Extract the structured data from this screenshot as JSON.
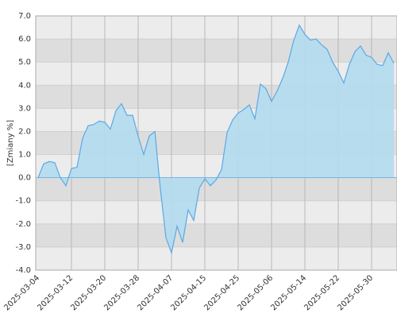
{
  "chart_data": {
    "type": "area",
    "y_label": "[Zmiany %]",
    "categories": [
      "2025-03-04",
      null,
      null,
      null,
      null,
      null,
      "2025-03-12",
      null,
      null,
      null,
      null,
      null,
      "2025-03-20",
      null,
      null,
      null,
      null,
      null,
      "2025-03-28",
      null,
      null,
      null,
      null,
      null,
      "2025-04-07",
      null,
      null,
      null,
      null,
      null,
      "2025-04-15",
      null,
      null,
      null,
      null,
      null,
      "2025-04-25",
      null,
      null,
      null,
      null,
      null,
      "2025-05-06",
      null,
      null,
      null,
      null,
      null,
      "2025-05-14",
      null,
      null,
      null,
      null,
      null,
      "2025-05-22",
      null,
      null,
      null,
      null,
      null,
      "2025-05-30",
      null,
      null,
      null,
      null
    ],
    "values": [
      0.0,
      0.6,
      0.7,
      0.65,
      0.0,
      -0.35,
      0.4,
      0.45,
      1.7,
      2.25,
      2.3,
      2.45,
      2.4,
      2.1,
      2.9,
      3.2,
      2.7,
      2.7,
      1.8,
      1.0,
      1.8,
      2.0,
      -0.5,
      -2.6,
      -3.25,
      -2.1,
      -2.8,
      -1.4,
      -1.85,
      -0.45,
      -0.05,
      -0.35,
      -0.1,
      0.35,
      1.95,
      2.5,
      2.8,
      2.95,
      3.15,
      2.55,
      4.05,
      3.85,
      3.3,
      3.75,
      4.3,
      5.0,
      5.95,
      6.6,
      6.2,
      5.95,
      6.0,
      5.75,
      5.55,
      5.0,
      4.6,
      4.1,
      4.9,
      5.45,
      5.7,
      5.3,
      5.2,
      4.9,
      4.85,
      5.4,
      4.95
    ],
    "color": "#5aa9e6",
    "fill": "#b3dcee",
    "ylim": [
      -4,
      7
    ],
    "yticks": [
      {
        "value": -4,
        "label": "-4.0"
      },
      {
        "value": -3,
        "label": "-3.0"
      },
      {
        "value": -2,
        "label": "-2.0"
      },
      {
        "value": -1,
        "label": "-1.0"
      },
      {
        "value": 0,
        "label": "0.0"
      },
      {
        "value": 1,
        "label": "1.0"
      },
      {
        "value": 2,
        "label": "2.0"
      },
      {
        "value": 3,
        "label": "3.0"
      },
      {
        "value": 4,
        "label": "4.0"
      },
      {
        "value": 5,
        "label": "5.0"
      },
      {
        "value": 6,
        "label": "6.0"
      },
      {
        "value": 7,
        "label": "7.0"
      }
    ],
    "grid": true
  }
}
